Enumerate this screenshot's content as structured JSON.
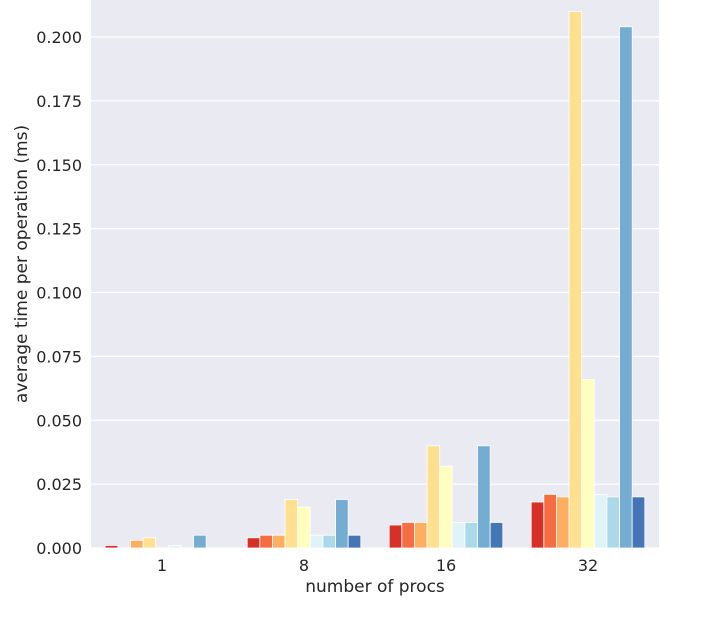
{
  "chart_data": {
    "type": "bar",
    "title": "",
    "xlabel": "number of procs",
    "ylabel": "average time per operation (ms)",
    "categories": [
      "1",
      "8",
      "16",
      "32"
    ],
    "ylim": [
      0,
      0.215
    ],
    "yticks": [
      0.0,
      0.025,
      0.05,
      0.075,
      0.1,
      0.125,
      0.15,
      0.175,
      0.2
    ],
    "ytick_labels": [
      "0.000",
      "0.025",
      "0.050",
      "0.075",
      "0.100",
      "0.125",
      "0.150",
      "0.175",
      "0.200"
    ],
    "grid": true,
    "legend": false,
    "background": "#eaeaf2",
    "series": [
      {
        "color": "#d73027",
        "values": [
          0.001,
          0.004,
          0.009,
          0.018
        ]
      },
      {
        "color": "#f46d43",
        "values": [
          0.0,
          0.005,
          0.01,
          0.021
        ]
      },
      {
        "color": "#fdae61",
        "values": [
          0.003,
          0.005,
          0.01,
          0.02
        ]
      },
      {
        "color": "#fee090",
        "values": [
          0.004,
          0.019,
          0.04,
          0.21
        ]
      },
      {
        "color": "#ffffbf",
        "values": [
          0.0,
          0.016,
          0.032,
          0.066
        ]
      },
      {
        "color": "#e0f3f8",
        "values": [
          0.001,
          0.005,
          0.01,
          0.021
        ]
      },
      {
        "color": "#abd9e9",
        "values": [
          0.0,
          0.005,
          0.01,
          0.02
        ]
      },
      {
        "color": "#74add1",
        "values": [
          0.005,
          0.019,
          0.04,
          0.204
        ]
      },
      {
        "color": "#4575b4",
        "values": [
          0.0,
          0.005,
          0.01,
          0.02
        ]
      }
    ]
  }
}
